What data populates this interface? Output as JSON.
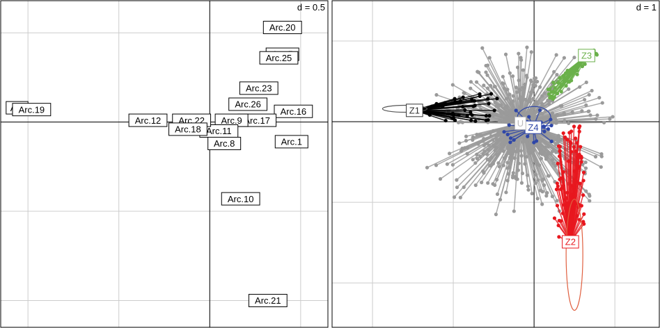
{
  "panels": {
    "left": {
      "scale_label": "d = 0.5"
    },
    "right": {
      "scale_label": "d = 1"
    }
  },
  "colors": {
    "grid": "#cccccc",
    "axis": "#000000",
    "cloud": "#9a9a9a",
    "Z1": "#000000",
    "Z2": "#e8171e",
    "Z3": "#6ab04a",
    "Z4": "#2e46a8",
    "U": "#c8c8c8"
  },
  "chart_data": [
    {
      "type": "scatter",
      "title": "",
      "scale": "d = 0.5",
      "grid": true,
      "xlim": [
        -1.15,
        0.65
      ],
      "ylim": [
        -1.15,
        0.68
      ],
      "points": [
        {
          "label": "Arc.20",
          "x": 0.4,
          "y": 0.53
        },
        {
          "label": "Arc.5",
          "x": 0.4,
          "y": 0.38
        },
        {
          "label": "Arc.25",
          "x": 0.38,
          "y": 0.36
        },
        {
          "label": "Arc.23",
          "x": 0.27,
          "y": 0.19
        },
        {
          "label": "Arc.26",
          "x": 0.21,
          "y": 0.1
        },
        {
          "label": "Arc.16",
          "x": 0.46,
          "y": 0.06
        },
        {
          "label": "Arc.17",
          "x": 0.26,
          "y": 0.01
        },
        {
          "label": "Arc.9",
          "x": 0.12,
          "y": 0.01
        },
        {
          "label": "Arc.11",
          "x": 0.05,
          "y": -0.05
        },
        {
          "label": "Arc.22",
          "x": -0.1,
          "y": 0.01
        },
        {
          "label": "Arc.18",
          "x": -0.12,
          "y": -0.04
        },
        {
          "label": "Arc.12",
          "x": -0.34,
          "y": 0.01
        },
        {
          "label": "Arc.8",
          "x": 0.08,
          "y": -0.12
        },
        {
          "label": "Arc.1",
          "x": 0.45,
          "y": -0.11
        },
        {
          "label": "Arc.10",
          "x": 0.17,
          "y": -0.43
        },
        {
          "label": "Arc.21",
          "x": 0.32,
          "y": -1.0
        },
        {
          "label": "Arc",
          "x": -1.06,
          "y": 0.08
        },
        {
          "label": "Arc.19",
          "x": -0.98,
          "y": 0.07
        }
      ]
    },
    {
      "type": "scatter",
      "title": "",
      "scale": "d = 1",
      "grid": true,
      "xlim": [
        -2.5,
        1.55
      ],
      "ylim": [
        -2.55,
        1.5
      ],
      "groups": [
        {
          "label": "Z1",
          "color": "#000000",
          "x": -1.48,
          "y": 0.14
        },
        {
          "label": "Z2",
          "color": "#e8171e",
          "x": 0.45,
          "y": -1.49
        },
        {
          "label": "Z3",
          "color": "#6ab04a",
          "x": 0.65,
          "y": 0.82
        },
        {
          "label": "Z4",
          "color": "#2e46a8",
          "x": -0.01,
          "y": -0.07
        },
        {
          "label": "U",
          "color": "#c8c8c8",
          "x": -0.17,
          "y": -0.02
        }
      ]
    }
  ]
}
